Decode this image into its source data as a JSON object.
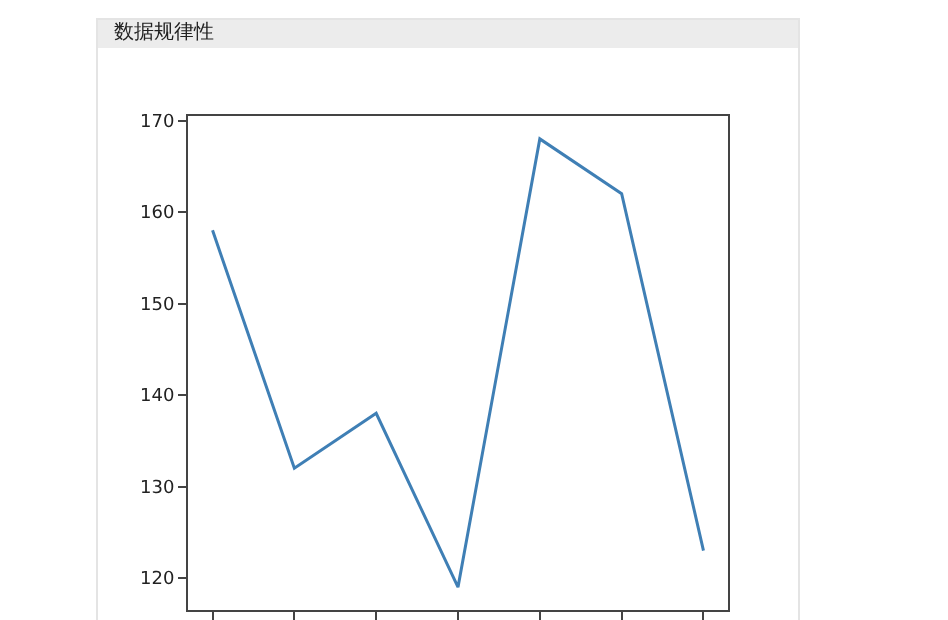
{
  "chart_data": {
    "type": "line",
    "title": "数据规律性",
    "categories": [
      null,
      null,
      null,
      null,
      null,
      null,
      null
    ],
    "series": [
      {
        "color": "#3f7fb5",
        "values": [
          158,
          132,
          138,
          119,
          168,
          162,
          123
        ]
      }
    ],
    "ylim": [
      116.5,
      170.5
    ],
    "yticks": [
      120,
      130,
      140,
      150,
      160,
      170
    ],
    "grid": false,
    "marker": "none",
    "line_style": "solid"
  }
}
